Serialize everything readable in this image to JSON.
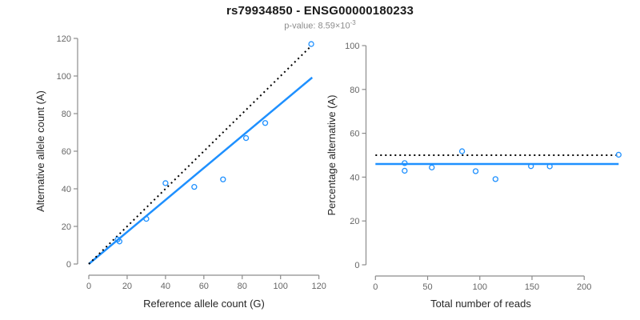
{
  "header": {
    "title": "rs79934850 - ENSG00000180233",
    "subtitle_prefix": "p-value: 8.59×10",
    "subtitle_exponent": "-3"
  },
  "colors": {
    "accent_blue": "#1E90FF",
    "line_black": "#000000",
    "axis_gray": "#8c8c8c",
    "tick_text": "#666666",
    "axis_title_text": "#262626",
    "subtitle_gray": "#8c8c8c"
  },
  "chart_data": [
    {
      "type": "scatter",
      "panel": "left",
      "xlabel": "Reference allele count (G)",
      "ylabel": "Alternative allele count (A)",
      "xlim": [
        0,
        120
      ],
      "ylim": [
        0,
        120
      ],
      "xticks": [
        0,
        20,
        40,
        60,
        80,
        100,
        120
      ],
      "yticks": [
        0,
        20,
        40,
        60,
        80,
        100,
        120
      ],
      "grid": false,
      "legend": "none",
      "points": [
        [
          15,
          13
        ],
        [
          16,
          12
        ],
        [
          30,
          24
        ],
        [
          40,
          43
        ],
        [
          55,
          41
        ],
        [
          70,
          45
        ],
        [
          82,
          67
        ],
        [
          92,
          75
        ],
        [
          116,
          117
        ]
      ],
      "lines": [
        {
          "name": "regression-fit-line",
          "style": "solid",
          "color": "#1E90FF",
          "x1": 0,
          "y1": 0,
          "x2": 116.5,
          "y2": 99.2
        },
        {
          "name": "identity-line",
          "style": "dotted",
          "color": "#000000",
          "x1": 0,
          "y1": 0,
          "x2": 115,
          "y2": 115
        }
      ]
    },
    {
      "type": "scatter",
      "panel": "right",
      "xlabel": "Total number of reads",
      "ylabel": "Percentage alternative (A)",
      "xlim": [
        0,
        240
      ],
      "ylim": [
        0,
        100
      ],
      "xticks": [
        0,
        50,
        100,
        150,
        200
      ],
      "yticks": [
        0,
        20,
        40,
        60,
        80,
        100
      ],
      "grid": false,
      "legend": "none",
      "points": [
        [
          28,
          46.4
        ],
        [
          28,
          42.9
        ],
        [
          54,
          44.4
        ],
        [
          83,
          51.8
        ],
        [
          96,
          42.7
        ],
        [
          115,
          39.1
        ],
        [
          149,
          45.0
        ],
        [
          167,
          44.9
        ],
        [
          233,
          50.2
        ]
      ],
      "lines": [
        {
          "name": "mean-percentage-line",
          "style": "solid",
          "color": "#1E90FF",
          "x1": 0,
          "y1": 46,
          "x2": 233,
          "y2": 46
        },
        {
          "name": "null-50-percent-line",
          "style": "dotted",
          "color": "#000000",
          "x1": 0,
          "y1": 50,
          "x2": 233,
          "y2": 50
        }
      ]
    }
  ]
}
